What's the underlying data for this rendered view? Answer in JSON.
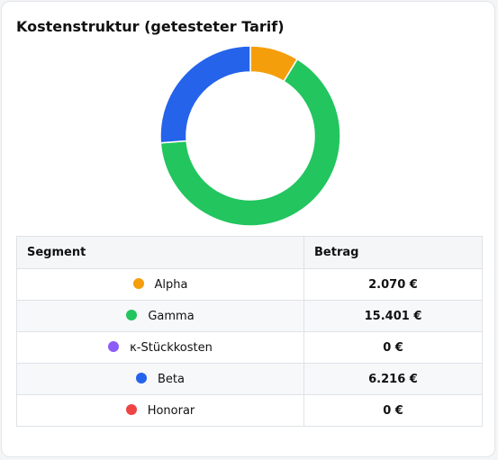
{
  "chart_data": {
    "type": "pie",
    "style": "donut",
    "title": "Kostenstruktur (getesteter Tarif)",
    "unit": "€",
    "slices": [
      {
        "label": "Alpha",
        "value": 2070,
        "display": "2.070 €",
        "color": "#f59e0b"
      },
      {
        "label": "Gamma",
        "value": 15401,
        "display": "15.401 €",
        "color": "#22c55e"
      },
      {
        "label": "κ-Stückkosten",
        "value": 0,
        "display": "0 €",
        "color": "#8b5cf6"
      },
      {
        "label": "Beta",
        "value": 6216,
        "display": "6.216 €",
        "color": "#2563eb"
      },
      {
        "label": "Honorar",
        "value": 0,
        "display": "0 €",
        "color": "#ef4444"
      }
    ],
    "legend": "none"
  },
  "table": {
    "headers": [
      "Segment",
      "Betrag"
    ]
  }
}
